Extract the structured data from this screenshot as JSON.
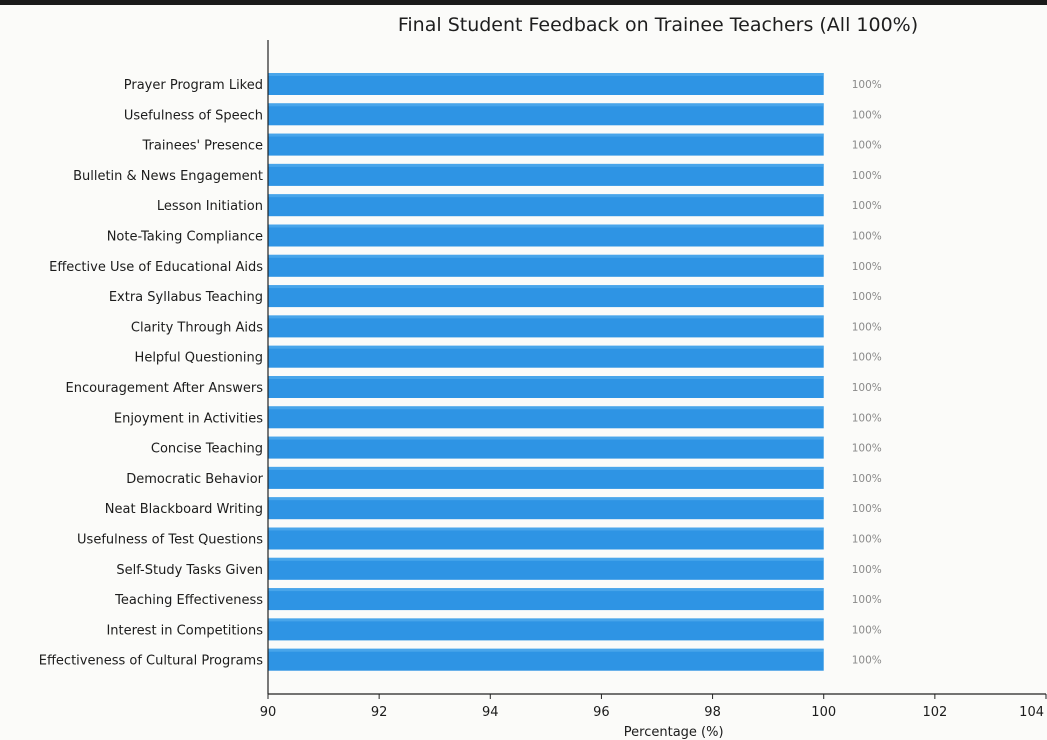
{
  "chart_data": {
    "type": "bar",
    "orientation": "horizontal",
    "title": "Final Student Feedback on Trainee Teachers (All 100%)",
    "xlabel": "Percentage (%)",
    "ylabel": "",
    "xlim": [
      90,
      104
    ],
    "xticks": [
      90,
      92,
      94,
      96,
      98,
      100,
      102,
      104
    ],
    "grid": false,
    "categories": [
      "Prayer Program Liked",
      "Usefulness of Speech",
      "Trainees' Presence",
      "Bulletin & News Engagement",
      "Lesson Initiation",
      "Note-Taking Compliance",
      "Effective Use of Educational Aids",
      "Extra Syllabus Teaching",
      "Clarity Through Aids",
      "Helpful Questioning",
      "Encouragement After Answers",
      "Enjoyment in Activities",
      "Concise Teaching",
      "Democratic Behavior",
      "Neat Blackboard Writing",
      "Usefulness of Test Questions",
      "Self-Study Tasks Given",
      "Teaching Effectiveness",
      "Interest in Competitions",
      "Effectiveness of Cultural Programs"
    ],
    "values": [
      100,
      100,
      100,
      100,
      100,
      100,
      100,
      100,
      100,
      100,
      100,
      100,
      100,
      100,
      100,
      100,
      100,
      100,
      100,
      100
    ],
    "data_labels": [
      "100%",
      "100%",
      "100%",
      "100%",
      "100%",
      "100%",
      "100%",
      "100%",
      "100%",
      "100%",
      "100%",
      "100%",
      "100%",
      "100%",
      "100%",
      "100%",
      "100%",
      "100%",
      "100%",
      "100%"
    ],
    "colors": {
      "bar": "#2e94e4",
      "bar_highlight": "#5ab0ee",
      "axis": "#222222",
      "label": "#8a8a8a"
    }
  }
}
